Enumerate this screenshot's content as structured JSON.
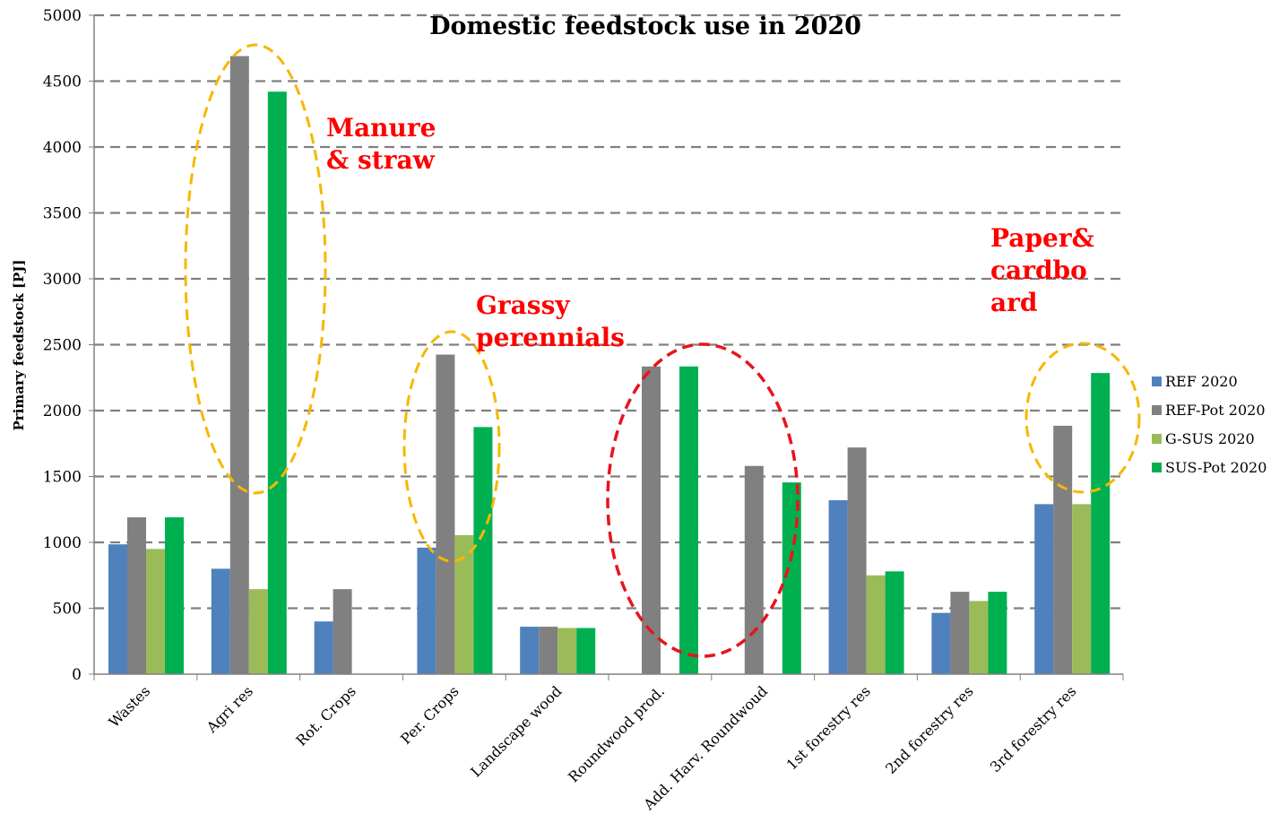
{
  "chart_data": {
    "type": "bar",
    "title": "Domestic feedstock use in 2020",
    "ylabel": "Primary feedstock [PJ]",
    "xlabel": "",
    "ylim": [
      0,
      5000
    ],
    "ytick_step": 500,
    "grid": true,
    "legend_position": "right",
    "categories": [
      "Wastes",
      "Agri res",
      "Rot. Crops",
      "Per. Crops",
      "Landscape wood",
      "Roundwood  prod.",
      "Add. Harv. Roundwoud",
      "1st forestry res",
      "2nd forestry res",
      "3rd forestry res"
    ],
    "series": [
      {
        "name": "REF 2020",
        "color": "#4f81bd",
        "values": [
          985,
          800,
          400,
          960,
          360,
          0,
          0,
          1320,
          465,
          1290
        ]
      },
      {
        "name": "REF-Pot  2020",
        "color": "#808080",
        "values": [
          1190,
          4690,
          645,
          2425,
          360,
          2335,
          1580,
          1720,
          625,
          1885
        ]
      },
      {
        "name": "G-SUS 2020",
        "color": "#9bbb59",
        "values": [
          950,
          645,
          0,
          1055,
          350,
          0,
          0,
          750,
          555,
          1290
        ]
      },
      {
        "name": "SUS-Pot 2020",
        "color": "#00b050",
        "values": [
          1190,
          4420,
          0,
          1875,
          350,
          2335,
          1455,
          780,
          625,
          2285
        ]
      }
    ],
    "annotations": [
      {
        "lines": [
          "Manure",
          "& straw"
        ]
      },
      {
        "lines": [
          "Grassy",
          "perennials"
        ]
      },
      {
        "lines": [
          "Paper&",
          "cardbo",
          "ard"
        ]
      }
    ],
    "highlight_colors": {
      "yellow": "#f5b800",
      "red": "#e8141c"
    }
  }
}
